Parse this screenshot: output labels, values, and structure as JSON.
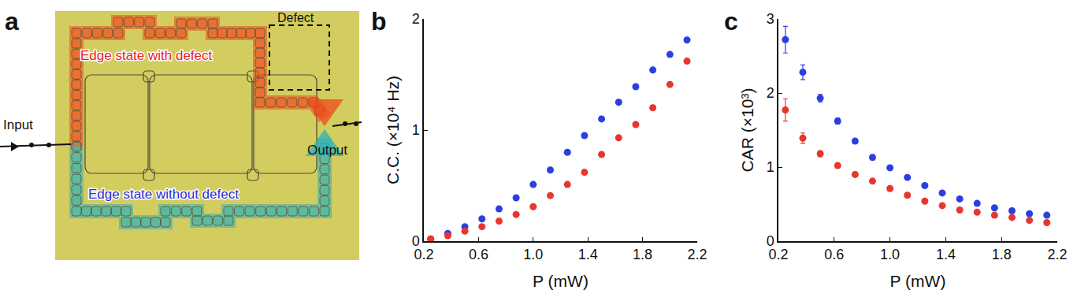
{
  "diagram": {
    "panel_label": "a",
    "input": "Input",
    "output": "Output",
    "defect": "Defect",
    "red_path": "Edge state with defect",
    "blue_path": "Edge state without defect"
  },
  "chart_data": [
    {
      "type": "scatter",
      "panel_label": "b",
      "x_label": "P (mW)",
      "y_label": "C.C. (×10⁴ Hz)",
      "x": [
        0.25,
        0.375,
        0.5,
        0.625,
        0.75,
        0.875,
        1.0,
        1.125,
        1.25,
        1.375,
        1.5,
        1.625,
        1.75,
        1.875,
        2.0,
        2.125
      ],
      "series": [
        {
          "color": "#2b3fe0",
          "values": [
            0.02,
            0.07,
            0.13,
            0.2,
            0.29,
            0.39,
            0.51,
            0.64,
            0.8,
            0.95,
            1.1,
            1.25,
            1.39,
            1.54,
            1.68,
            1.81
          ]
        },
        {
          "color": "#e8362d",
          "values": [
            0.02,
            0.05,
            0.09,
            0.13,
            0.18,
            0.24,
            0.31,
            0.41,
            0.51,
            0.62,
            0.78,
            0.93,
            1.05,
            1.2,
            1.41,
            1.62
          ]
        }
      ],
      "xlim": [
        0.2,
        2.2
      ],
      "xticks": [
        0.2,
        0.6,
        {
          "value": 1,
          "label": "1.0"
        },
        1.4,
        1.8,
        2.2
      ],
      "ylim": [
        0,
        2
      ],
      "yticks": [
        0,
        1,
        2
      ],
      "marker": "circle",
      "grid": false
    },
    {
      "type": "scatter",
      "panel_label": "c",
      "x_label": "P (mW)",
      "y_label": "CAR (×10³)",
      "x": [
        0.25,
        0.375,
        0.5,
        0.625,
        0.75,
        0.875,
        1.0,
        1.125,
        1.25,
        1.375,
        1.5,
        1.625,
        1.75,
        1.875,
        2.0,
        2.125
      ],
      "series": [
        {
          "color": "#2b3fe0",
          "values": [
            2.72,
            2.28,
            1.93,
            1.62,
            1.35,
            1.13,
            0.99,
            0.86,
            0.75,
            0.65,
            0.57,
            0.51,
            0.45,
            0.41,
            0.37,
            0.35
          ],
          "errors": [
            0.18,
            0.1,
            0.05,
            0.04,
            0.03,
            0.03,
            0.03,
            0.02,
            0.02,
            0.02,
            0.02,
            0.02,
            0.02,
            0.02,
            0.02,
            0.02
          ]
        },
        {
          "color": "#e8362d",
          "values": [
            1.77,
            1.39,
            1.18,
            1.02,
            0.9,
            0.81,
            0.71,
            0.62,
            0.54,
            0.48,
            0.42,
            0.39,
            0.35,
            0.32,
            0.28,
            0.25
          ],
          "errors": [
            0.15,
            0.07,
            0.04,
            0.03,
            0.03,
            0.02,
            0.02,
            0.02,
            0.02,
            0.02,
            0.02,
            0.02,
            0.02,
            0.02,
            0.02,
            0.02
          ]
        }
      ],
      "xlim": [
        0.2,
        2.2
      ],
      "xticks": [
        0.2,
        0.6,
        {
          "value": 1,
          "label": "1.0"
        },
        1.4,
        1.8,
        2.2
      ],
      "ylim": [
        0,
        3
      ],
      "yticks": [
        0,
        1,
        2,
        3
      ],
      "marker": "circle",
      "grid": false
    }
  ]
}
